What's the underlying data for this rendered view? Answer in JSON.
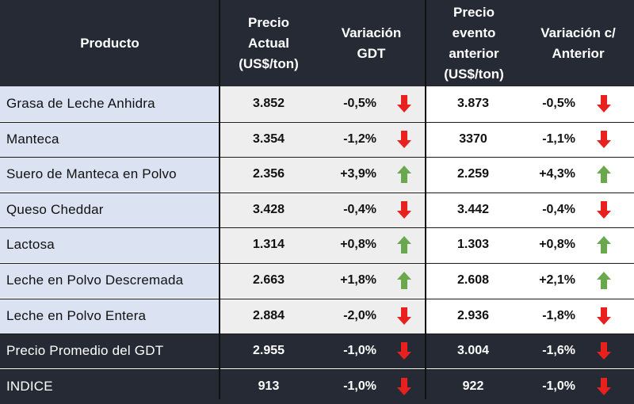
{
  "colors": {
    "header_bg": "#252a35",
    "name_bg": "#dbe3f2",
    "mid_bg": "#eeeeee",
    "down": "#e8201e",
    "up": "#6aa84f"
  },
  "headers": [
    "Producto",
    "Precio\nActual\n(US$/ton)",
    "Variación\nGDT",
    "Precio\nevento\nanterior\n(US$/ton)",
    "Variación c/\nAnterior"
  ],
  "chart_data": {
    "type": "table",
    "columns": [
      "Producto",
      "Precio Actual (US$/ton)",
      "Variación GDT",
      "Precio evento anterior (US$/ton)",
      "Variación c/ Anterior"
    ],
    "rows": [
      {
        "name": "Grasa de Leche Anhidra",
        "price": "3.852",
        "var": "-0,5%",
        "dir": "down",
        "prev": "3.873",
        "var_prev": "-0,5%",
        "dir_prev": "down",
        "style": "light"
      },
      {
        "name": "Manteca",
        "price": "3.354",
        "var": "-1,2%",
        "dir": "down",
        "prev": "3370",
        "var_prev": "-1,1%",
        "dir_prev": "down",
        "style": "light"
      },
      {
        "name": "Suero de Manteca en Polvo",
        "price": "2.356",
        "var": "+3,9%",
        "dir": "up",
        "prev": "2.259",
        "var_prev": "+4,3%",
        "dir_prev": "up",
        "style": "light"
      },
      {
        "name": "Queso Cheddar",
        "price": "3.428",
        "var": "-0,4%",
        "dir": "down",
        "prev": "3.442",
        "var_prev": "-0,4%",
        "dir_prev": "down",
        "style": "light"
      },
      {
        "name": "Lactosa",
        "price": "1.314",
        "var": "+0,8%",
        "dir": "up",
        "prev": "1.303",
        "var_prev": "+0,8%",
        "dir_prev": "up",
        "style": "light"
      },
      {
        "name": "Leche en Polvo Descremada",
        "price": "2.663",
        "var": "+1,8%",
        "dir": "up",
        "prev": "2.608",
        "var_prev": "+2,1%",
        "dir_prev": "up",
        "style": "light"
      },
      {
        "name": "Leche en Polvo Entera",
        "price": "2.884",
        "var": "-2,0%",
        "dir": "down",
        "prev": "2.936",
        "var_prev": "-1,8%",
        "dir_prev": "down",
        "style": "light"
      },
      {
        "name": "Precio Promedio del GDT",
        "price": "2.955",
        "var": "-1,0%",
        "dir": "down",
        "prev": "3.004",
        "var_prev": "-1,6%",
        "dir_prev": "down",
        "style": "dark"
      },
      {
        "name": "INDICE",
        "price": "913",
        "var": "-1,0%",
        "dir": "down",
        "prev": "922",
        "var_prev": "-1,0%",
        "dir_prev": "down",
        "style": "dark"
      }
    ]
  }
}
